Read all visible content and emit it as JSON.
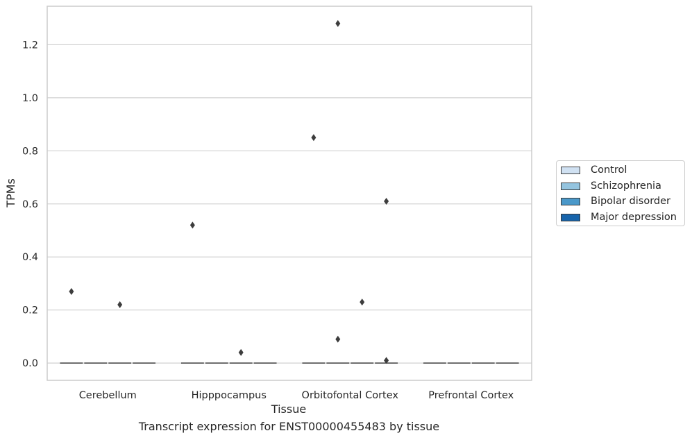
{
  "chart_data": {
    "type": "box",
    "title": "",
    "xlabel": "Tissue",
    "ylabel": "TPMs",
    "ylim": [
      -0.065,
      1.345
    ],
    "yticks": [
      0.0,
      0.2,
      0.4,
      0.6,
      0.8,
      1.0,
      1.2
    ],
    "ytick_labels": [
      "0.0",
      "0.2",
      "0.4",
      "0.6",
      "0.8",
      "1.0",
      "1.2"
    ],
    "grid": "horizontal",
    "legend_position": "right",
    "categories": [
      "Cerebellum",
      "Hipppocampus",
      "Orbitofontal Cortex",
      "Prefrontal Cortex"
    ],
    "series": [
      {
        "name": "Control",
        "color": "#d0e1f2",
        "medians": [
          0,
          0,
          0,
          0
        ],
        "outliers": [
          [
            0.27
          ],
          [
            0.52
          ],
          [
            0.85
          ],
          []
        ]
      },
      {
        "name": "Schizophrenia",
        "color": "#94c4df",
        "medians": [
          0,
          0,
          0,
          0
        ],
        "outliers": [
          [],
          [],
          [
            1.28,
            0.09
          ],
          []
        ]
      },
      {
        "name": "Bipolar disorder",
        "color": "#4a98c9",
        "medians": [
          0,
          0,
          0,
          0
        ],
        "outliers": [
          [
            0.22
          ],
          [
            0.04
          ],
          [
            0.23
          ],
          []
        ]
      },
      {
        "name": "Major depression",
        "color": "#1764ab",
        "medians": [
          0,
          0,
          0,
          0
        ],
        "outliers": [
          [],
          [],
          [
            0.61,
            0.01
          ],
          []
        ]
      }
    ]
  },
  "caption": "Transcript expression for ENST00000455483 by tissue"
}
